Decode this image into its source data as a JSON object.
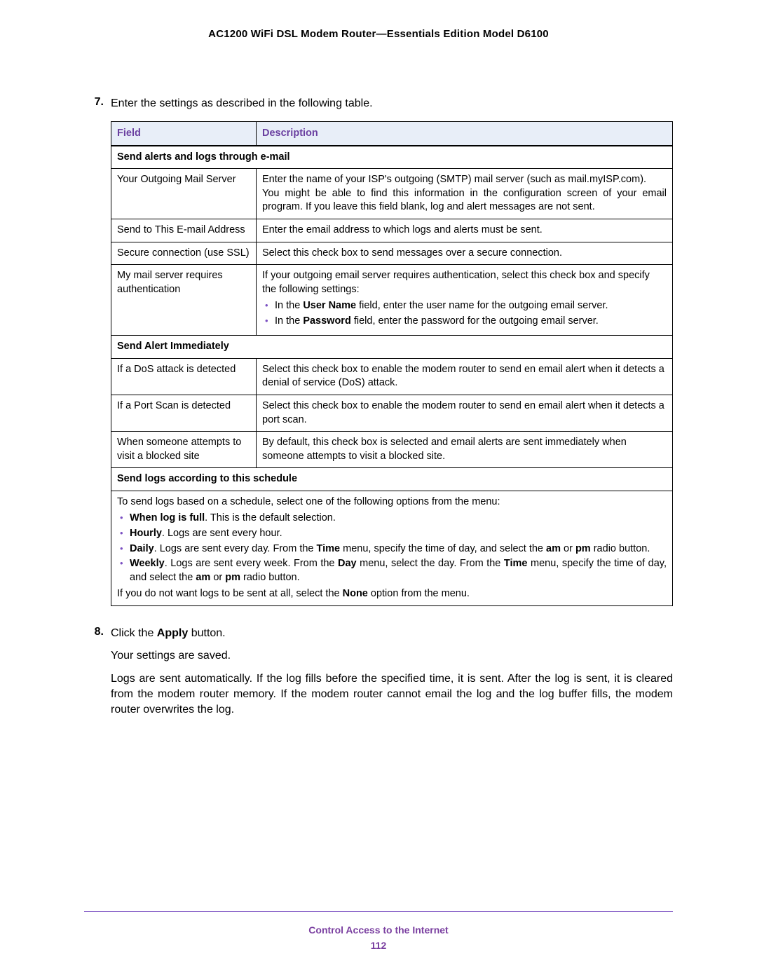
{
  "header": {
    "title": "AC1200 WiFi DSL Modem Router—Essentials Edition Model D6100"
  },
  "steps": {
    "s7": {
      "num": "7.",
      "text": "Enter the settings as described in the following table."
    },
    "s8": {
      "num": "8.",
      "line1_pre": "Click the ",
      "line1_b": "Apply",
      "line1_post": " button.",
      "line2": "Your settings are saved.",
      "line3": "Logs are sent automatically. If the log fills before the specified time, it is sent. After the log is sent, it is cleared from the modem router memory. If the modem router cannot email the log and the log buffer fills, the modem router overwrites the log."
    }
  },
  "table": {
    "headers": {
      "field": "Field",
      "description": "Description"
    },
    "section1": "Send alerts and logs through e-mail",
    "r1": {
      "field": "Your Outgoing Mail Server",
      "p1": "Enter the name of your ISP's outgoing (SMTP) mail server (such as mail.myISP.com).",
      "p2": "You might be able to find this information in the configuration screen of your email program. If you leave this field blank, log and alert messages are not sent."
    },
    "r2": {
      "field": "Send to This E-mail Address",
      "desc": "Enter the email address to which logs and alerts must be sent."
    },
    "r3": {
      "field": "Secure connection (use SSL)",
      "desc": "Select this check box to send messages over a secure connection."
    },
    "r4": {
      "field": "My mail server requires authentication",
      "p1": "If your outgoing email server requires authentication, select this check box and specify the following settings:",
      "b1_pre": "In the ",
      "b1_b": "User Name",
      "b1_post": " field, enter the user name for the outgoing email server.",
      "b2_pre": "In the ",
      "b2_b": "Password",
      "b2_post": " field, enter the password for the outgoing email server."
    },
    "section2": "Send Alert Immediately",
    "r5": {
      "field": "If a DoS attack is detected",
      "desc": "Select this check box to enable the modem router to send en email alert when it detects a denial of service (DoS) attack."
    },
    "r6": {
      "field": "If a Port Scan is detected",
      "desc": "Select this check box to enable the modem router to send en email alert when it detects a port scan."
    },
    "r7": {
      "field": "When someone attempts to visit a blocked site",
      "desc": "By default, this check box is selected and email alerts are sent immediately when someone attempts to visit a blocked site."
    },
    "section3": "Send logs according to this schedule",
    "sched": {
      "intro": "To send logs based on a schedule, select one of the following options from the menu:",
      "i1_b": "When log is full",
      "i1_post": ". This is the default selection.",
      "i2_b": "Hourly",
      "i2_post": ". Logs are sent every hour.",
      "i3_b": "Daily",
      "i3_mid1": ". Logs are sent every day. From the ",
      "i3_b2": "Time",
      "i3_mid2": " menu, specify the time of day, and select the ",
      "i3_b3": "am",
      "i3_mid3": " or ",
      "i3_b4": "pm",
      "i3_post": " radio button.",
      "i4_b": "Weekly",
      "i4_mid1": ". Logs are sent every week. From the ",
      "i4_b2": "Day",
      "i4_mid2": " menu, select the day. From the ",
      "i4_b3": "Time",
      "i4_mid3": " menu, specify the time of day, and select the ",
      "i4_b4": "am",
      "i4_mid4": " or ",
      "i4_b5": "pm",
      "i4_post": " radio button.",
      "outro_pre": "If you do not want logs to be sent at all, select the ",
      "outro_b": "None",
      "outro_post": " option from the menu."
    }
  },
  "footer": {
    "title": "Control Access to the Internet",
    "page": "112"
  },
  "colors": {
    "accent": "#7a3fa0",
    "bullet": "#7a4fc2",
    "th_bg": "#e8eef8"
  }
}
